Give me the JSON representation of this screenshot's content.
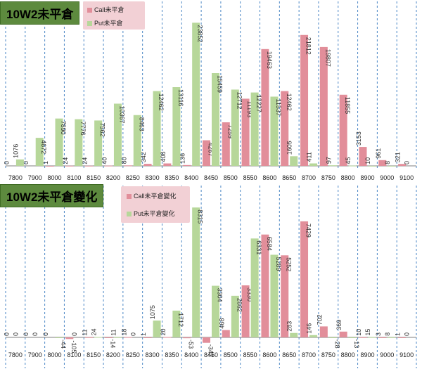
{
  "chart_data": [
    {
      "type": "bar",
      "title": "10W2未平倉",
      "categories": [
        "7800",
        "7900",
        "8000",
        "8100",
        "8150",
        "8200",
        "8250",
        "8300",
        "8350",
        "8400",
        "8450",
        "8500",
        "8550",
        "8600",
        "8650",
        "8700",
        "8750",
        "8800",
        "8900",
        "9000",
        "9100"
      ],
      "series": [
        {
          "name": "Call未平倉",
          "color": "#e28e9a",
          "values": [
            0,
            0,
            1,
            24,
            24,
            40,
            80,
            342,
            408,
            136,
            4267,
            7259,
            11193,
            19463,
            12462,
            21812,
            19807,
            11855,
            3153,
            961,
            321
          ]
        },
        {
          "name": "Put未平倉",
          "color": "#b7d79a",
          "values": [
            1076,
            4672,
            7890,
            7776,
            7562,
            10367,
            8463,
            12462,
            13116,
            23852,
            15459,
            12712,
            12227,
            11537,
            1605,
            411,
            97,
            45,
            10,
            8,
            0
          ]
        }
      ],
      "ylim": [
        0,
        26000
      ],
      "grid": "vertical-dashed",
      "legend": "top-center"
    },
    {
      "type": "bar",
      "title": "10W2未平倉變化",
      "categories": [
        "7800",
        "7900",
        "8000",
        "8100",
        "8150",
        "8200",
        "8250",
        "8300",
        "8350",
        "8400",
        "8450",
        "8500",
        "8550",
        "8600",
        "8650",
        "8700",
        "8750",
        "8800",
        "8900",
        "9000",
        "9100"
      ],
      "series": [
        {
          "name": "Call未平倉變化",
          "color": "#e28e9a",
          "values": [
            0,
            0,
            0,
            -105,
            11,
            -14,
            18,
            1,
            20,
            -53,
            -347,
            468,
            3330,
            6584,
            5252,
            7429,
            702,
            369,
            10,
            3,
            1
          ]
        },
        {
          "name": "Put未平倉變化",
          "color": "#b7d79a",
          "values": [
            0,
            0,
            -44,
            0,
            24,
            11,
            0,
            1075,
            1712,
            8315,
            3304,
            2662,
            6331,
            5289,
            283,
            146,
            -28,
            -13,
            15,
            8,
            0
          ]
        }
      ],
      "ylim": [
        -600,
        9000
      ],
      "grid": "vertical-dashed",
      "legend": "top-center"
    }
  ]
}
